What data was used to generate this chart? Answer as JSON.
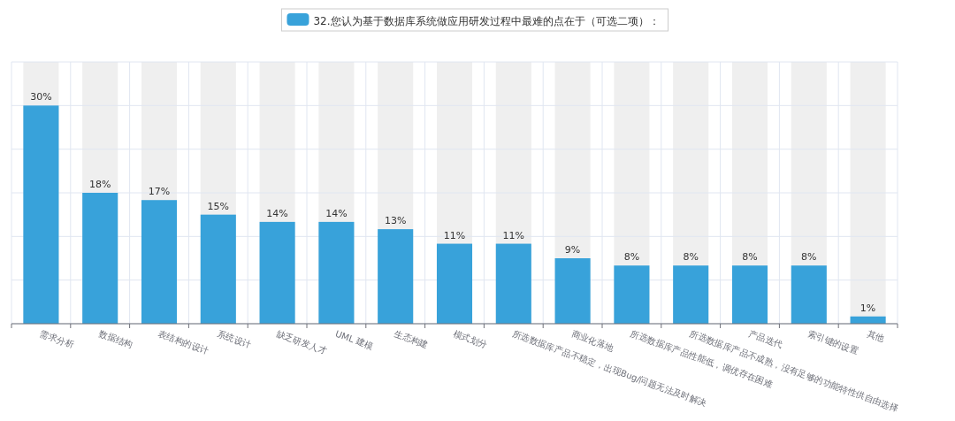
{
  "chart_data": {
    "type": "bar",
    "categories": [
      "需求分析",
      "数据结构",
      "表结构的设计",
      "系统设计",
      "缺乏研发人才",
      "UML 建模",
      "生态构建",
      "模式划分",
      "所选数据库产品不稳定，出现Bug/问题无法及时解决",
      "商业化落地",
      "所选数据库产品性能低，调优存在困难",
      "所选数据库产品不成熟，没有足够的功能特性供自由选择",
      "产品迭代",
      "索引键的设置",
      "其他"
    ],
    "series": [
      {
        "name": "32.您认为基于数据库系统做应用研发过程中最难的点在于（可选二项）：",
        "color": "#38a2da",
        "values": [
          30,
          18,
          17,
          15,
          14,
          14,
          13,
          11,
          11,
          9,
          8,
          8,
          8,
          8,
          1
        ],
        "value_labels": [
          "30%",
          "18%",
          "17%",
          "15%",
          "14%",
          "14%",
          "13%",
          "11%",
          "11%",
          "9%",
          "8%",
          "8%",
          "8%",
          "8%",
          "1%"
        ]
      }
    ],
    "ylim": [
      0,
      36
    ],
    "yticks": [
      {
        "value": 0,
        "label": null
      },
      {
        "value": 6,
        "label": null
      },
      {
        "value": 12,
        "label": null
      },
      {
        "value": 18,
        "label": null
      },
      {
        "value": 24,
        "label": null
      },
      {
        "value": 30,
        "label": null
      },
      {
        "value": 36,
        "label": null
      }
    ],
    "grid": true,
    "legend": "top"
  }
}
